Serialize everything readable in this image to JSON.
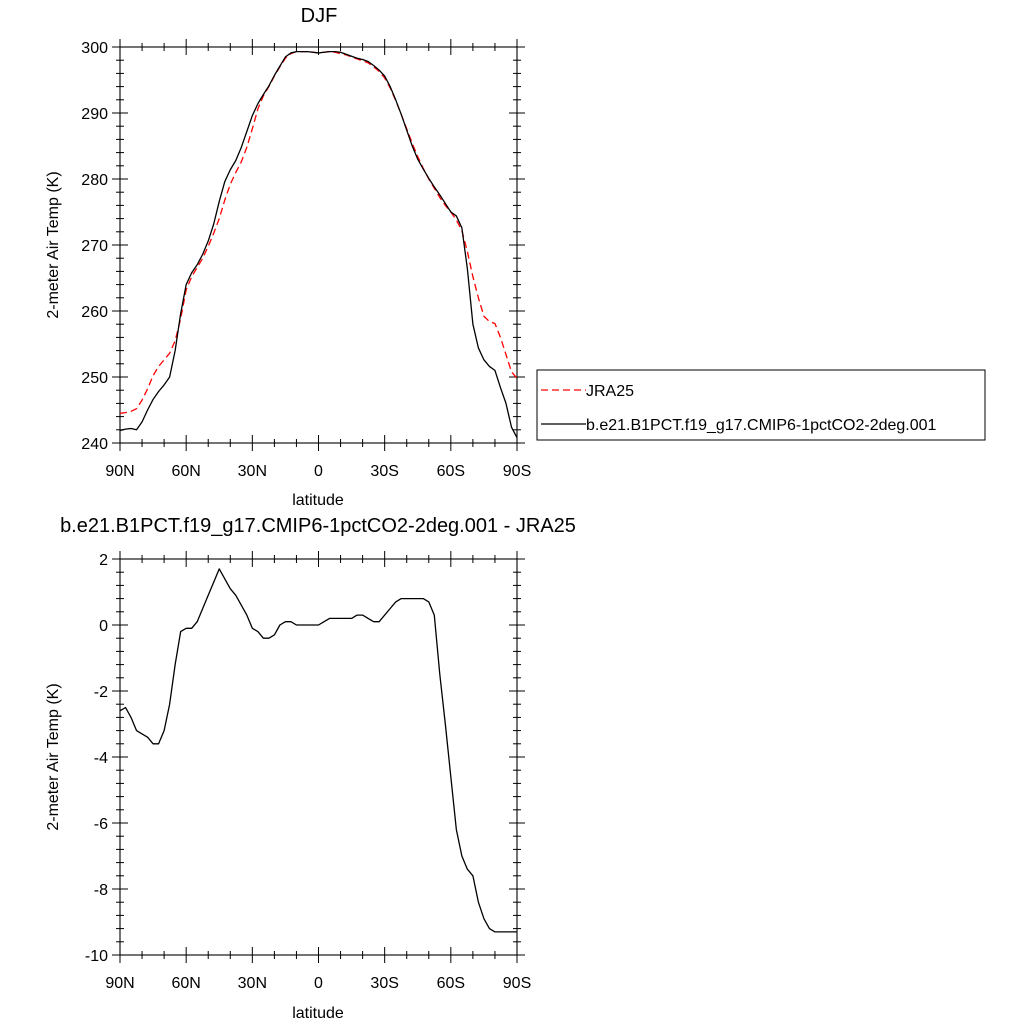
{
  "chart_data": [
    {
      "type": "line",
      "title": "DJF",
      "xlabel": "latitude",
      "ylabel": "2-meter Air Temp (K)",
      "xlim": [
        90,
        -90
      ],
      "ylim": [
        240,
        300
      ],
      "xticks": [
        {
          "value": 90,
          "label": "90N"
        },
        {
          "value": 60,
          "label": "60N"
        },
        {
          "value": 30,
          "label": "30N"
        },
        {
          "value": 0,
          "label": "0"
        },
        {
          "value": -30,
          "label": "30S"
        },
        {
          "value": -60,
          "label": "60S"
        },
        {
          "value": -90,
          "label": "90S"
        }
      ],
      "yticks": [
        {
          "value": 300,
          "label": "300"
        },
        {
          "value": 290,
          "label": "290"
        },
        {
          "value": 280,
          "label": "280"
        },
        {
          "value": 270,
          "label": "270"
        },
        {
          "value": 260,
          "label": "260"
        },
        {
          "value": 250,
          "label": "250"
        },
        {
          "value": 240,
          "label": "240"
        }
      ],
      "legend_position": "right",
      "series": [
        {
          "name": "JRA25",
          "color": "#ff0000",
          "dash": "dashed",
          "x": [
            90,
            87.5,
            85,
            82.5,
            80,
            77.5,
            75,
            72.5,
            70,
            67.5,
            65,
            62.5,
            60,
            57.5,
            55,
            52.5,
            50,
            47.5,
            45,
            42.5,
            40,
            37.5,
            35,
            32.5,
            30,
            27.5,
            25,
            22.5,
            20,
            17.5,
            15,
            12.5,
            10,
            7.5,
            5,
            2.5,
            0,
            -2.5,
            -5,
            -7.5,
            -10,
            -12.5,
            -15,
            -17.5,
            -20,
            -22.5,
            -25,
            -27.5,
            -30,
            -32.5,
            -35,
            -37.5,
            -40,
            -42.5,
            -45,
            -47.5,
            -50,
            -52.5,
            -55,
            -57.5,
            -60,
            -62.5,
            -65,
            -67.5,
            -70,
            -72.5,
            -75,
            -77.5,
            -80,
            -82.5,
            -85,
            -87.5,
            -90
          ],
          "values": [
            244.5,
            244.6,
            244.8,
            245.2,
            246.5,
            248.2,
            250.2,
            251.6,
            252.6,
            253.6,
            255.5,
            258.8,
            263.2,
            265.2,
            266.6,
            268.0,
            269.8,
            271.8,
            274.0,
            276.8,
            279.2,
            281.0,
            282.6,
            284.8,
            287.6,
            290.6,
            292.6,
            294.0,
            295.6,
            297.0,
            298.3,
            299.0,
            299.3,
            299.3,
            299.3,
            299.2,
            299.1,
            299.2,
            299.3,
            299.2,
            299.0,
            298.8,
            298.5,
            298.2,
            297.9,
            297.6,
            297.0,
            296.3,
            295.3,
            293.8,
            291.9,
            289.8,
            287.6,
            285.4,
            283.4,
            281.6,
            280.0,
            278.6,
            277.2,
            276.0,
            275.0,
            273.8,
            272.2,
            269.0,
            265.2,
            262.0,
            259.2,
            258.4,
            258.1,
            256.0,
            253.4,
            250.8,
            249.8
          ]
        },
        {
          "name": "b.e21.B1PCT.f19_g17.CMIP6-1pctCO2-2deg.001",
          "color": "#000000",
          "dash": "solid",
          "x": [
            90,
            87.5,
            85,
            82.5,
            80,
            77.5,
            75,
            72.5,
            70,
            67.5,
            65,
            62.5,
            60,
            57.5,
            55,
            52.5,
            50,
            47.5,
            45,
            42.5,
            40,
            37.5,
            35,
            32.5,
            30,
            27.5,
            25,
            22.5,
            20,
            17.5,
            15,
            12.5,
            10,
            7.5,
            5,
            2.5,
            0,
            -2.5,
            -5,
            -7.5,
            -10,
            -12.5,
            -15,
            -17.5,
            -20,
            -22.5,
            -25,
            -27.5,
            -30,
            -32.5,
            -35,
            -37.5,
            -40,
            -42.5,
            -45,
            -47.5,
            -50,
            -52.5,
            -55,
            -57.5,
            -60,
            -62.5,
            -65,
            -67.5,
            -70,
            -72.5,
            -75,
            -77.5,
            -80,
            -82.5,
            -85,
            -87.5,
            -90
          ],
          "values": [
            241.9,
            242.1,
            242.2,
            242.0,
            243.2,
            245.0,
            246.6,
            247.8,
            248.8,
            250.0,
            254.0,
            259.6,
            264.0,
            265.8,
            267.0,
            268.6,
            270.6,
            273.2,
            276.6,
            279.6,
            281.4,
            282.8,
            284.8,
            287.2,
            289.6,
            291.4,
            292.8,
            294.1,
            295.7,
            297.1,
            298.5,
            299.1,
            299.3,
            299.3,
            299.3,
            299.2,
            299.1,
            299.2,
            299.3,
            299.3,
            299.2,
            298.9,
            298.6,
            298.3,
            298.1,
            297.8,
            297.2,
            296.5,
            295.6,
            294.0,
            292.0,
            289.8,
            287.4,
            285.0,
            283.0,
            281.5,
            280.1,
            278.8,
            277.6,
            276.3,
            275.0,
            274.4,
            272.6,
            266.4,
            258.0,
            254.4,
            252.6,
            251.6,
            251.0,
            248.4,
            246.0,
            242.4,
            240.8
          ]
        }
      ]
    },
    {
      "type": "line",
      "title": "b.e21.B1PCT.f19_g17.CMIP6-1pctCO2-2deg.001 - JRA25",
      "xlabel": "latitude",
      "ylabel": "2-meter Air Temp (K)",
      "xlim": [
        90,
        -90
      ],
      "ylim": [
        -10,
        2
      ],
      "xticks": [
        {
          "value": 90,
          "label": "90N"
        },
        {
          "value": 60,
          "label": "60N"
        },
        {
          "value": 30,
          "label": "30N"
        },
        {
          "value": 0,
          "label": "0"
        },
        {
          "value": -30,
          "label": "30S"
        },
        {
          "value": -60,
          "label": "60S"
        },
        {
          "value": -90,
          "label": "90S"
        }
      ],
      "yticks": [
        {
          "value": 2,
          "label": "2"
        },
        {
          "value": 0,
          "label": "0"
        },
        {
          "value": -2,
          "label": "-2"
        },
        {
          "value": -4,
          "label": "-4"
        },
        {
          "value": -6,
          "label": "-6"
        },
        {
          "value": -8,
          "label": "-8"
        },
        {
          "value": -10,
          "label": "-10"
        }
      ],
      "series": [
        {
          "color": "#000000",
          "dash": "solid",
          "x": [
            90,
            87.5,
            85,
            82.5,
            80,
            77.5,
            75,
            72.5,
            70,
            67.5,
            65,
            62.5,
            60,
            57.5,
            55,
            52.5,
            50,
            47.5,
            45,
            42.5,
            40,
            37.5,
            35,
            32.5,
            30,
            27.5,
            25,
            22.5,
            20,
            17.5,
            15,
            12.5,
            10,
            7.5,
            5,
            2.5,
            0,
            -2.5,
            -5,
            -7.5,
            -10,
            -12.5,
            -15,
            -17.5,
            -20,
            -22.5,
            -25,
            -27.5,
            -30,
            -32.5,
            -35,
            -37.5,
            -40,
            -42.5,
            -45,
            -47.5,
            -50,
            -52.5,
            -55,
            -57.5,
            -60,
            -62.5,
            -65,
            -67.5,
            -70,
            -72.5,
            -75,
            -77.5,
            -80,
            -82.5,
            -85,
            -87.5,
            -90
          ],
          "values": [
            -2.6,
            -2.5,
            -2.8,
            -3.2,
            -3.3,
            -3.4,
            -3.6,
            -3.6,
            -3.2,
            -2.4,
            -1.2,
            -0.2,
            -0.1,
            -0.1,
            0.1,
            0.5,
            0.9,
            1.3,
            1.7,
            1.4,
            1.1,
            0.9,
            0.6,
            0.3,
            -0.1,
            -0.2,
            -0.4,
            -0.4,
            -0.3,
            0.0,
            0.1,
            0.1,
            0.0,
            0.0,
            0.0,
            0.0,
            0.0,
            0.1,
            0.2,
            0.2,
            0.2,
            0.2,
            0.2,
            0.3,
            0.3,
            0.2,
            0.1,
            0.1,
            0.3,
            0.5,
            0.7,
            0.8,
            0.8,
            0.8,
            0.8,
            0.8,
            0.7,
            0.3,
            -1.5,
            -3.0,
            -4.6,
            -6.2,
            -7.0,
            -7.4,
            -7.6,
            -8.4,
            -8.9,
            -9.2,
            -9.3,
            -9.3,
            -9.3,
            -9.3,
            -9.3
          ]
        }
      ]
    }
  ]
}
